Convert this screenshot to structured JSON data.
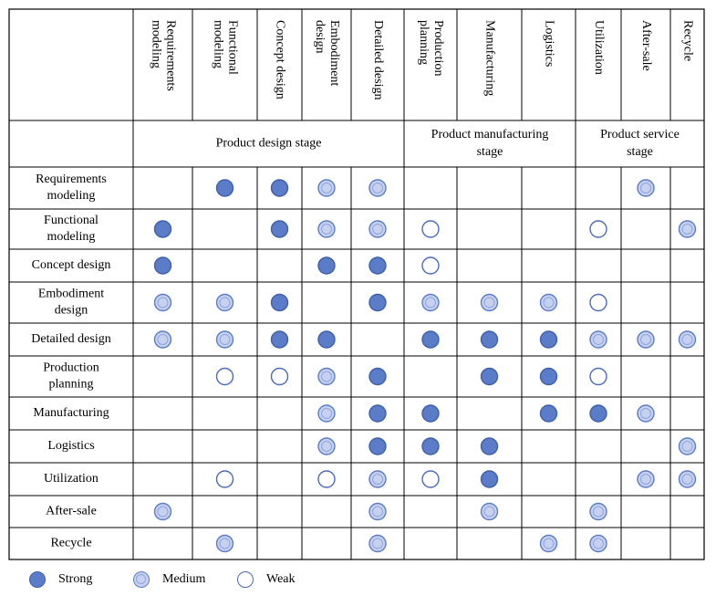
{
  "columns": [
    "Requirements modeling",
    "Functional modeling",
    "Concept design",
    "Embodiment design",
    "Detailed design",
    "Production planning",
    "Manufacturing",
    "Logistics",
    "Utilization",
    "After-sale",
    "Recycle"
  ],
  "column_lines": [
    [
      "Requirements",
      "modeling"
    ],
    [
      "Functional",
      "modeling"
    ],
    [
      "Concept design"
    ],
    [
      "Embodiment",
      "design"
    ],
    [
      "Detailed design"
    ],
    [
      "Production",
      "planning"
    ],
    [
      "Manufacturing"
    ],
    [
      "Logistics"
    ],
    [
      "Utilization"
    ],
    [
      "After-sale"
    ],
    [
      "Recycle"
    ]
  ],
  "stages": [
    {
      "label_lines": [
        "Product design stage"
      ],
      "span": 5
    },
    {
      "label_lines": [
        "Product manufacturing",
        "stage"
      ],
      "span": 3
    },
    {
      "label_lines": [
        "Product service",
        "stage"
      ],
      "span": 3
    }
  ],
  "rows": [
    {
      "label_lines": [
        "Requirements",
        "modeling"
      ],
      "cells": [
        "",
        "S",
        "S",
        "M",
        "M",
        "",
        "",
        "",
        "",
        "M",
        ""
      ]
    },
    {
      "label_lines": [
        "Functional",
        "modeling"
      ],
      "cells": [
        "S",
        "",
        "S",
        "M",
        "M",
        "W",
        "",
        "",
        "W",
        "",
        "M"
      ]
    },
    {
      "label_lines": [
        "Concept design"
      ],
      "cells": [
        "S",
        "",
        "",
        "S",
        "S",
        "W",
        "",
        "",
        "",
        "",
        ""
      ]
    },
    {
      "label_lines": [
        "Embodiment",
        "design"
      ],
      "cells": [
        "M",
        "M",
        "S",
        "",
        "S",
        "M",
        "M",
        "M",
        "W",
        "",
        ""
      ]
    },
    {
      "label_lines": [
        "Detailed design"
      ],
      "cells": [
        "M",
        "M",
        "S",
        "S",
        "",
        "S",
        "S",
        "S",
        "M",
        "M",
        "M"
      ]
    },
    {
      "label_lines": [
        "Production",
        "planning"
      ],
      "cells": [
        "",
        "W",
        "W",
        "M",
        "S",
        "",
        "S",
        "S",
        "W",
        "",
        ""
      ]
    },
    {
      "label_lines": [
        "Manufacturing"
      ],
      "cells": [
        "",
        "",
        "",
        "M",
        "S",
        "S",
        "",
        "S",
        "S",
        "M",
        ""
      ]
    },
    {
      "label_lines": [
        "Logistics"
      ],
      "cells": [
        "",
        "",
        "",
        "M",
        "S",
        "S",
        "S",
        "",
        "",
        "",
        "M"
      ]
    },
    {
      "label_lines": [
        "Utilization"
      ],
      "cells": [
        "",
        "W",
        "",
        "W",
        "M",
        "W",
        "S",
        "",
        "",
        "M",
        "M"
      ]
    },
    {
      "label_lines": [
        "After-sale"
      ],
      "cells": [
        "M",
        "",
        "",
        "",
        "M",
        "",
        "M",
        "",
        "M",
        "",
        ""
      ]
    },
    {
      "label_lines": [
        "Recycle"
      ],
      "cells": [
        "",
        "M",
        "",
        "",
        "M",
        "",
        "",
        "M",
        "M",
        "",
        ""
      ]
    }
  ],
  "legend": [
    {
      "key": "S",
      "label": "Strong",
      "style": "strong"
    },
    {
      "key": "M",
      "label": "Medium",
      "style": "medium"
    },
    {
      "key": "W",
      "label": "Weak",
      "style": "weak"
    }
  ],
  "colors": {
    "strong_fill": "#5b7cc8",
    "strong_stroke": "#3f60a8",
    "medium_fill": "#c6d1f0",
    "medium_stroke": "#5b7cc8",
    "weak_fill": "#ffffff",
    "weak_stroke": "#4a6bbd",
    "grid": "#000000"
  }
}
